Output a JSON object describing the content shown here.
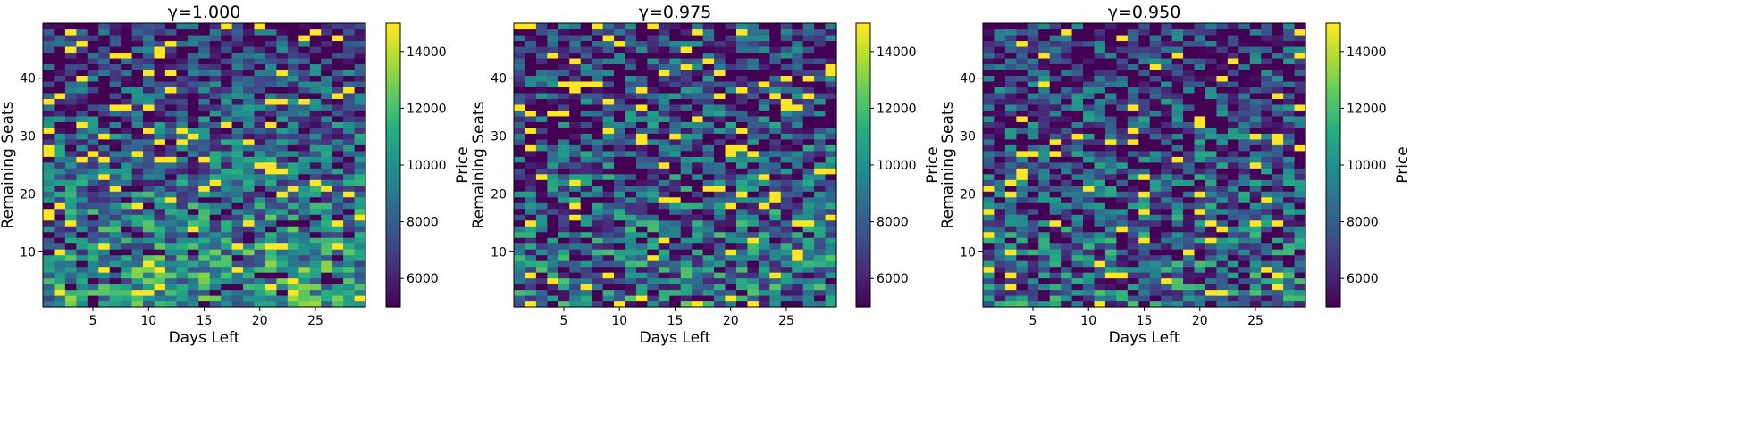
{
  "chart_data": [
    {
      "type": "heatmap",
      "title": "γ=1.000",
      "xlabel": "Days Left",
      "ylabel": "Remaining Seats",
      "x_range": [
        1,
        29
      ],
      "y_range": [
        1,
        49
      ],
      "xticks": [
        5,
        10,
        15,
        20,
        25
      ],
      "yticks": [
        10,
        20,
        30,
        40
      ],
      "colorbar": {
        "label": "Price",
        "colormap": "viridis",
        "range": [
          5000,
          15000
        ],
        "ticks": [
          6000,
          8000,
          10000,
          12000,
          14000
        ]
      },
      "pattern": "low-seat rows tend toward higher prices (green/yellow) at bottom; upper rows mostly dark purple to teal",
      "random_seed": 101,
      "trend": 0.55,
      "noise": 0.65
    },
    {
      "type": "heatmap",
      "title": "γ=0.975",
      "xlabel": "Days Left",
      "ylabel": "Remaining Seats",
      "x_range": [
        1,
        29
      ],
      "y_range": [
        1,
        49
      ],
      "xticks": [
        5,
        10,
        15,
        20,
        25
      ],
      "yticks": [
        10,
        20,
        30,
        40
      ],
      "colorbar": {
        "label": "Price",
        "colormap": "viridis",
        "range": [
          5000,
          15000
        ],
        "ticks": [
          6000,
          8000,
          10000,
          12000,
          14000
        ]
      },
      "pattern": "noisy mix across grid with mild increase in price at low seats",
      "random_seed": 202,
      "trend": 0.35,
      "noise": 0.75
    },
    {
      "type": "heatmap",
      "title": "γ=0.950",
      "xlabel": "Days Left",
      "ylabel": "Remaining Seats",
      "x_range": [
        1,
        29
      ],
      "y_range": [
        1,
        49
      ],
      "xticks": [
        5,
        10,
        15,
        20,
        25
      ],
      "yticks": [
        10,
        20,
        30,
        40
      ],
      "colorbar": {
        "label": "Price",
        "colormap": "viridis",
        "range": [
          5000,
          15000
        ],
        "ticks": [
          6000,
          8000,
          10000,
          12000,
          14000
        ]
      },
      "pattern": "noisy mix across grid with mild increase in price at low seats",
      "random_seed": 303,
      "trend": 0.3,
      "noise": 0.75
    }
  ]
}
